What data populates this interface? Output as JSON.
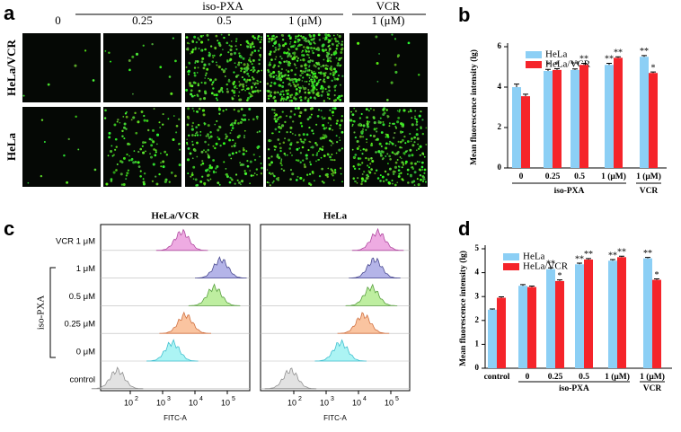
{
  "figure": {
    "panel_labels": [
      "a",
      "b",
      "c",
      "d"
    ]
  },
  "panel_a": {
    "group_label": "iso-PXA",
    "columns": [
      "0",
      "0.25",
      "0.5",
      "1 (μM)"
    ],
    "vcr_label": "VCR",
    "vcr_column": "1 (μM)",
    "rows": [
      "HeLa/VCR",
      "HeLa"
    ]
  },
  "panel_c": {
    "titles": [
      "HeLa/VCR",
      "HeLa"
    ],
    "rows": [
      "VCR 1 μM",
      "1 μM",
      "0.5 μM",
      "0.25 μM",
      "0 μM",
      "control"
    ],
    "bracket_label": "iso-PXA",
    "x_label": "FITC-A",
    "xticks": [
      {
        "base": "10",
        "exp": 2
      },
      {
        "base": "10",
        "exp": 3
      },
      {
        "base": "10",
        "exp": 4
      },
      {
        "base": "10",
        "exp": 5
      }
    ]
  },
  "chart_data": [
    {
      "type": "bar",
      "y_label": "Mean fluorescence intensity (lg)",
      "categories": [
        "0",
        "0.25",
        "0.5",
        "1 (μM)",
        "1 (μM)"
      ],
      "group_labels": [
        "iso-PXA",
        "VCR"
      ],
      "ylim": [
        0,
        6
      ],
      "yticks": [
        0,
        2,
        4,
        6
      ],
      "series": [
        {
          "name": "HeLa",
          "color": "#8ccff5",
          "values": [
            4.0,
            4.8,
            4.85,
            5.1,
            5.5
          ],
          "errors": [
            0.15,
            0.08,
            0.05,
            0.08,
            0.06
          ],
          "annotations": [
            null,
            "*",
            "**",
            "**",
            "**"
          ]
        },
        {
          "name": "HeLa/VCR",
          "color": "#f5242a",
          "values": [
            3.55,
            4.85,
            5.1,
            5.45,
            4.7
          ],
          "errors": [
            0.1,
            0.06,
            0.08,
            0.05,
            0.05
          ],
          "annotations": [
            null,
            "*",
            "**",
            "**",
            "*"
          ]
        }
      ]
    },
    {
      "type": "bar",
      "y_label": "Mean fluorescence intensity (lg)",
      "categories": [
        "control",
        "0",
        "0.25",
        "0.5",
        "1 (μM)",
        "1 (μM)"
      ],
      "group_labels": [
        "iso-PXA",
        "VCR"
      ],
      "ylim": [
        0,
        5
      ],
      "yticks": [
        0,
        1,
        2,
        3,
        4,
        5
      ],
      "series": [
        {
          "name": "HeLa",
          "color": "#8ccff5",
          "values": [
            2.45,
            3.45,
            4.15,
            4.35,
            4.5,
            4.6
          ],
          "errors": [
            0.03,
            0.05,
            0.05,
            0.05,
            0.05,
            0.04
          ],
          "annotations": [
            null,
            null,
            "**",
            "**",
            "**",
            "**"
          ]
        },
        {
          "name": "HeLa/VCR",
          "color": "#f5242a",
          "values": [
            2.95,
            3.4,
            3.65,
            4.55,
            4.65,
            3.7
          ],
          "errors": [
            0.04,
            0.04,
            0.05,
            0.04,
            0.04,
            0.04
          ],
          "annotations": [
            null,
            null,
            "*",
            "**",
            "**",
            "*"
          ]
        }
      ]
    }
  ]
}
